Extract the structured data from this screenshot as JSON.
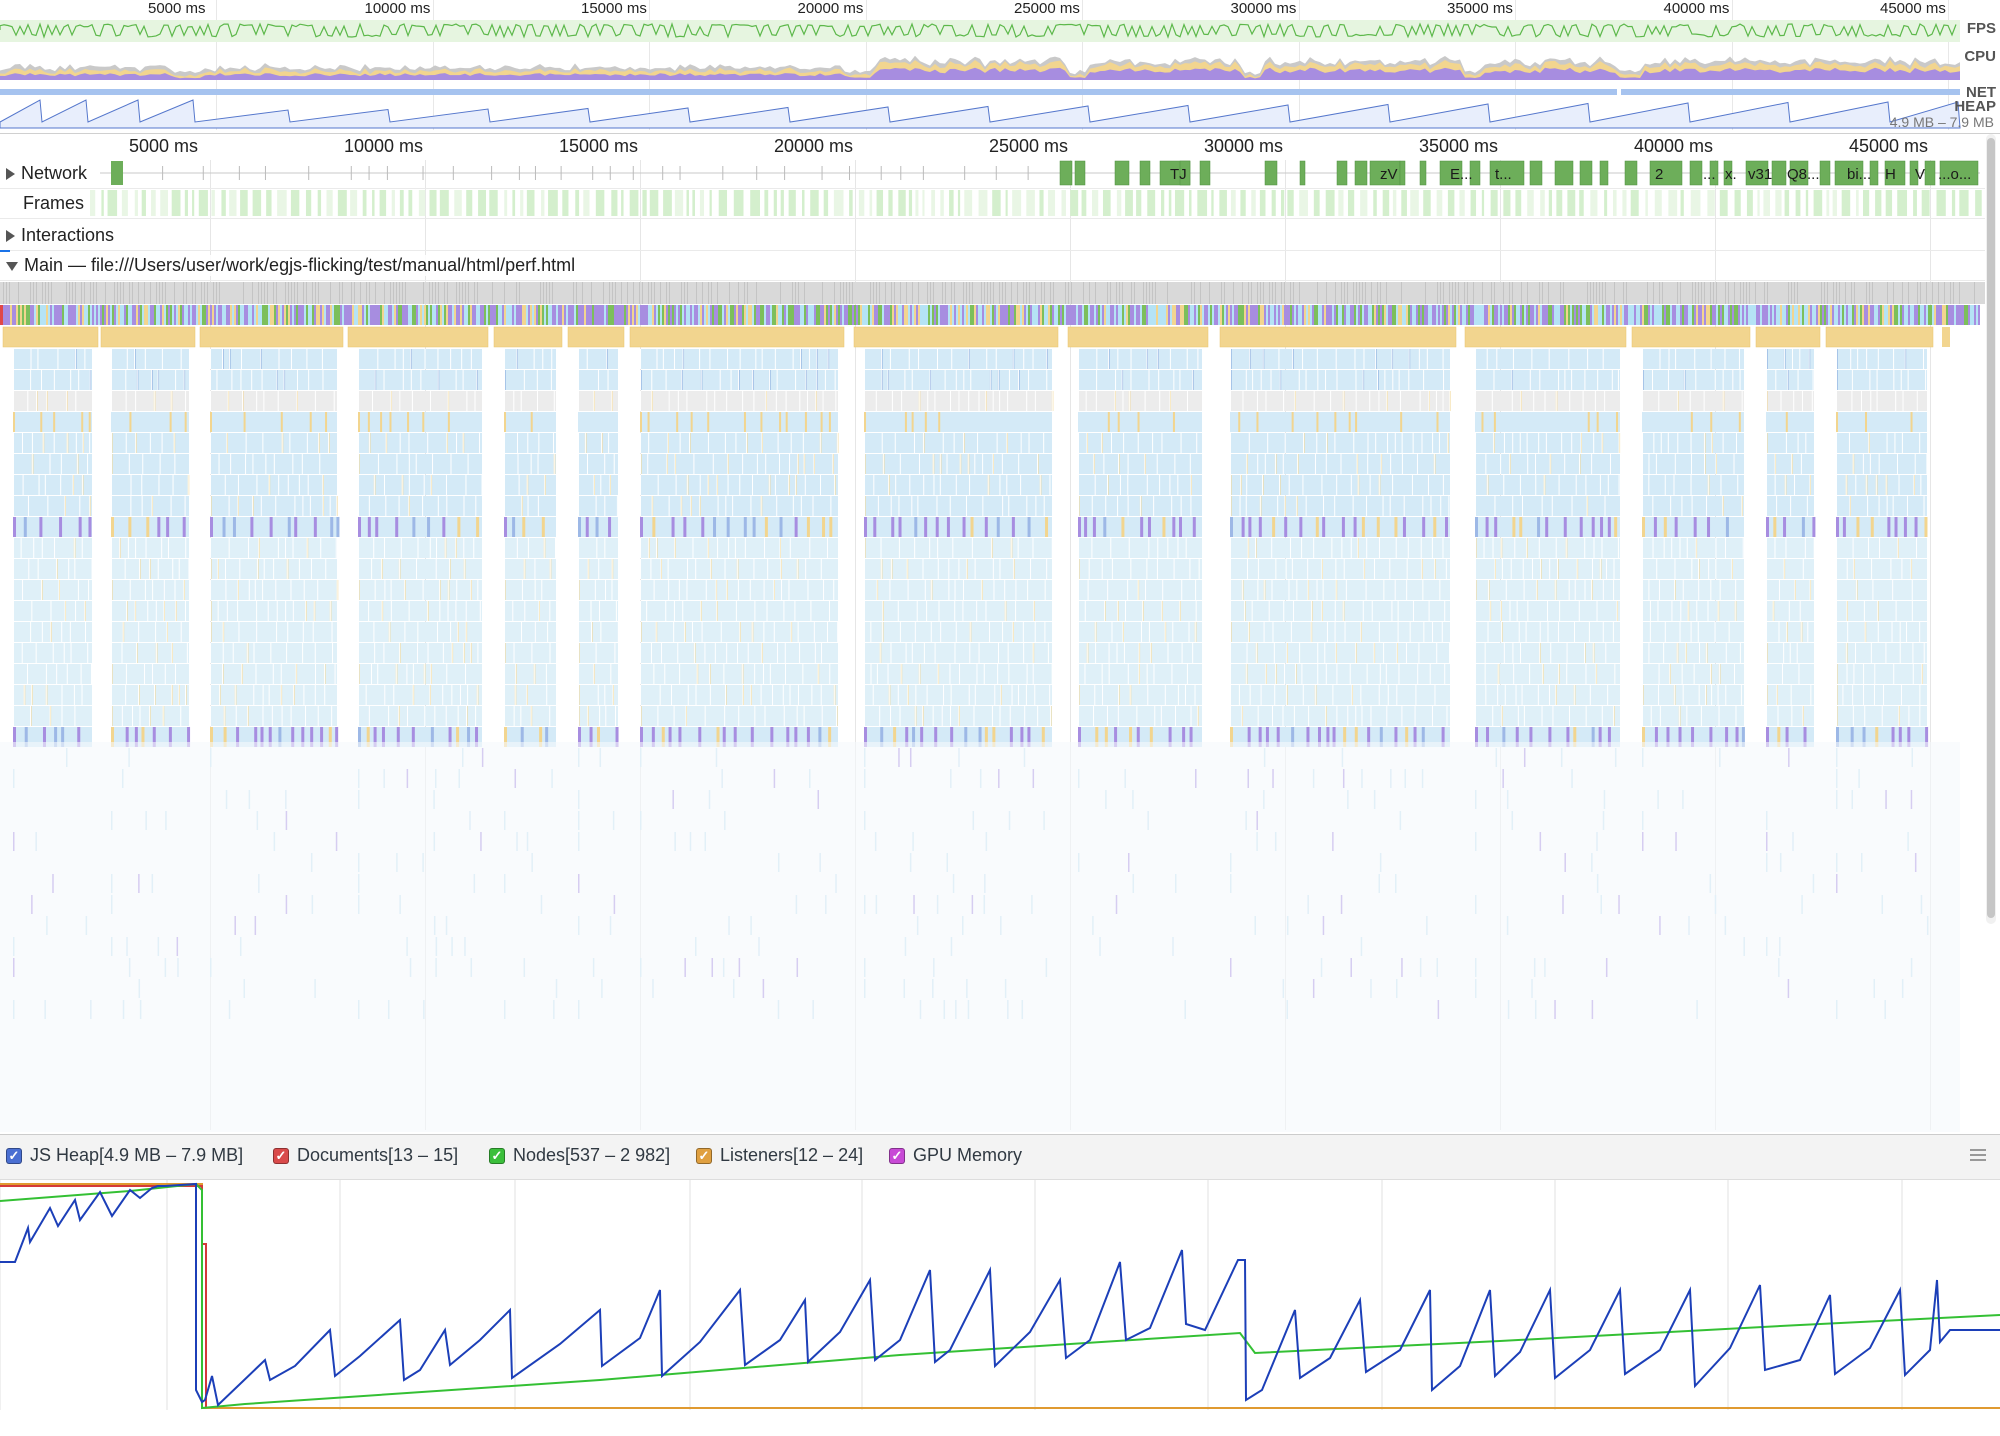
{
  "overview": {
    "ticks": [
      "5000 ms",
      "10000 ms",
      "15000 ms",
      "20000 ms",
      "25000 ms",
      "30000 ms",
      "35000 ms",
      "40000 ms",
      "45000 ms"
    ],
    "labels": {
      "fps": "FPS",
      "cpu": "CPU",
      "net": "NET",
      "heap": "HEAP"
    },
    "heap_range": "4.9 MB – 7.9 MB"
  },
  "timeline": {
    "ticks": [
      "5000 ms",
      "10000 ms",
      "15000 ms",
      "20000 ms",
      "25000 ms",
      "30000 ms",
      "35000 ms",
      "40000 ms",
      "45000 ms"
    ],
    "tracks": {
      "network": "Network",
      "frames": "Frames",
      "interactions": "Interactions",
      "main": "Main — file:///Users/user/work/egjs-flicking/test/manual/html/perf.html"
    },
    "network_labels": [
      "TJ",
      "zV",
      "E...",
      "t...",
      "2",
      "...",
      "x.",
      "v31",
      "Q8...",
      "bi...",
      "H",
      "V",
      "...o..."
    ]
  },
  "counters": {
    "items": [
      {
        "label": "JS Heap[4.9 MB – 7.9 MB]",
        "color": "#4a6fd2",
        "checked": true
      },
      {
        "label": "Documents[13 – 15]",
        "color": "#d94a4a",
        "checked": true
      },
      {
        "label": "Nodes[537 – 2 982]",
        "color": "#3bbf3b",
        "checked": true
      },
      {
        "label": "Listeners[12 – 24]",
        "color": "#e0a040",
        "checked": true
      },
      {
        "label": "GPU Memory",
        "color": "#c84ad6",
        "checked": true
      }
    ],
    "check_glyph": "✓"
  },
  "colors": {
    "scripting": "#f2d58f",
    "rendering": "#a78de0",
    "painting": "#7cbf5b",
    "idle": "#d4eaf7",
    "system": "#d9d9d9",
    "heap_line": "#1c3fb8",
    "nodes_line": "#34c034",
    "documents_line": "#d43a3a",
    "listeners_line": "#e09a30"
  }
}
